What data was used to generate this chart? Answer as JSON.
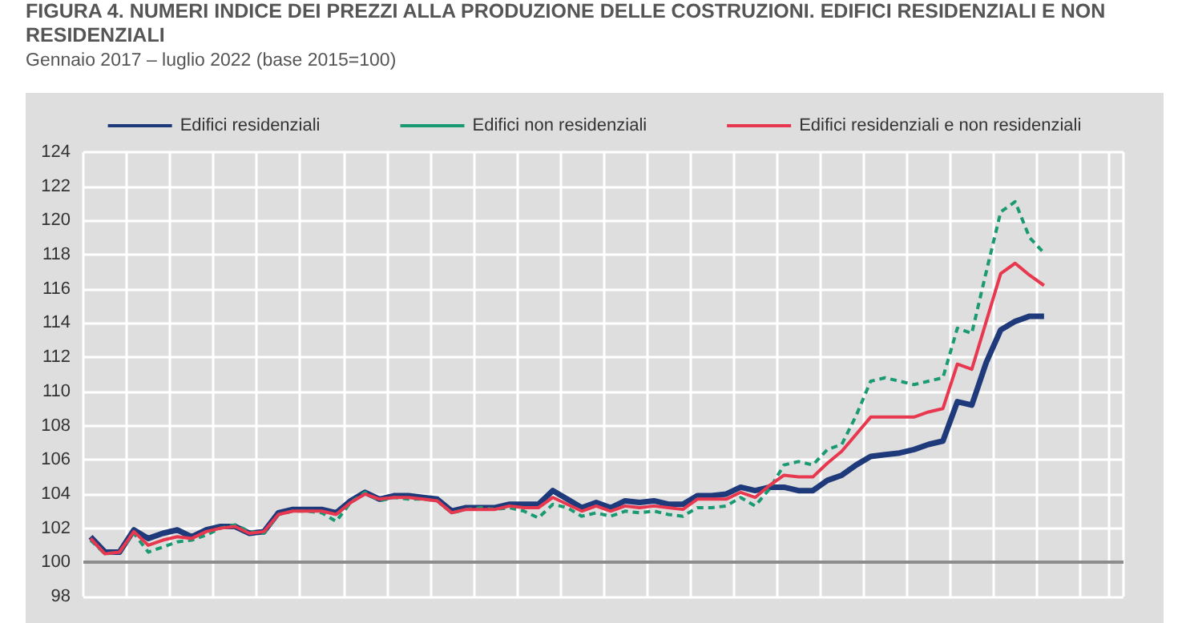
{
  "chart_data": {
    "type": "line",
    "title": "FIGURA 4.  NUMERI INDICE DEI PREZZI ALLA PRODUZIONE DELLE COSTRUZIONI. EDIFICI RESIDENZIALI E NON RESIDENZIALI",
    "subtitle": "Gennaio 2017 – luglio 2022 (base 2015=100)",
    "categories": [
      null,
      null,
      null,
      null,
      null,
      null,
      null,
      null,
      null,
      null,
      null,
      null,
      null,
      null,
      null,
      null,
      null,
      null,
      null,
      null,
      null,
      null,
      null,
      null,
      null,
      null,
      null,
      null,
      null,
      null,
      null,
      null,
      null,
      null,
      null,
      null,
      null,
      null,
      null,
      null,
      null,
      null,
      null,
      null,
      null,
      null,
      null,
      null,
      null,
      null,
      null,
      null,
      null,
      null,
      null,
      null,
      null,
      null,
      null,
      null,
      null,
      null,
      null,
      null,
      null,
      null,
      null,
      null,
      null,
      null,
      null,
      null
    ],
    "series": [
      {
        "name": "Edifici residenziali",
        "color": "#1f3a7a",
        "line_style": "solid",
        "values": [
          101.5,
          100.6,
          100.6,
          101.9,
          101.4,
          101.7,
          101.9,
          101.5,
          101.9,
          102.1,
          102.1,
          101.7,
          101.8,
          102.9,
          103.1,
          103.1,
          103.1,
          102.9,
          103.6,
          104.1,
          103.7,
          103.9,
          103.9,
          103.8,
          103.7,
          103.0,
          103.2,
          103.2,
          103.2,
          103.4,
          103.4,
          103.4,
          104.2,
          103.7,
          103.2,
          103.5,
          103.2,
          103.6,
          103.5,
          103.6,
          103.4,
          103.4,
          103.9,
          103.9,
          104.0,
          104.4,
          104.2,
          104.4,
          104.4,
          104.2,
          104.2,
          104.8,
          105.1,
          105.7,
          106.2,
          106.3,
          106.4,
          106.6,
          106.9,
          107.1,
          109.4,
          109.2,
          111.7,
          113.6,
          114.1,
          114.4,
          114.4,
          null,
          null,
          null,
          null,
          null
        ]
      },
      {
        "name": "Edifici non residenziali",
        "color": "#1a9a72",
        "line_style": "dashed",
        "values": [
          101.3,
          100.5,
          100.6,
          101.7,
          100.6,
          100.9,
          101.2,
          101.3,
          101.6,
          102.0,
          102.2,
          101.8,
          101.7,
          102.8,
          103.0,
          103.0,
          102.9,
          102.4,
          103.5,
          104.1,
          103.6,
          103.8,
          103.7,
          103.7,
          103.6,
          102.9,
          103.1,
          103.2,
          103.1,
          103.2,
          103.0,
          102.6,
          103.4,
          103.2,
          102.7,
          102.9,
          102.7,
          103.0,
          102.9,
          103.0,
          102.8,
          102.7,
          103.2,
          103.2,
          103.3,
          103.8,
          103.3,
          104.3,
          105.7,
          105.9,
          105.7,
          106.6,
          106.9,
          108.6,
          110.6,
          110.8,
          110.6,
          110.4,
          110.6,
          110.8,
          113.7,
          113.4,
          117.0,
          120.5,
          121.1,
          119.0,
          118.1,
          null,
          null,
          null,
          null,
          null
        ]
      },
      {
        "name": "Edifici residenziali e non residenziali",
        "color": "#e8384f",
        "line_style": "solid",
        "values": [
          101.4,
          100.5,
          100.6,
          101.8,
          101.0,
          101.3,
          101.5,
          101.4,
          101.8,
          102.0,
          102.1,
          101.7,
          101.8,
          102.8,
          103.0,
          103.0,
          103.0,
          102.8,
          103.5,
          104.0,
          103.7,
          103.8,
          103.8,
          103.7,
          103.6,
          102.9,
          103.1,
          103.1,
          103.1,
          103.3,
          103.2,
          103.2,
          103.8,
          103.4,
          103.0,
          103.3,
          103.0,
          103.3,
          103.2,
          103.3,
          103.2,
          103.1,
          103.7,
          103.7,
          103.7,
          104.1,
          103.8,
          104.5,
          105.1,
          105.0,
          105.0,
          105.8,
          106.5,
          107.5,
          108.5,
          108.5,
          108.5,
          108.5,
          108.8,
          109.0,
          111.6,
          111.3,
          114.1,
          116.9,
          117.5,
          116.8,
          116.2,
          null,
          null,
          null,
          null,
          null
        ]
      }
    ],
    "ylim": [
      98,
      124
    ],
    "yticks": [
      98,
      100,
      102,
      104,
      106,
      108,
      110,
      112,
      114,
      116,
      118,
      120,
      122,
      124
    ],
    "ref_lines": [
      {
        "axis": "y",
        "value": 100,
        "color": "#8c8c8c"
      }
    ],
    "grid": true,
    "legend": "top",
    "marker": "none",
    "tick_labels": "y"
  }
}
